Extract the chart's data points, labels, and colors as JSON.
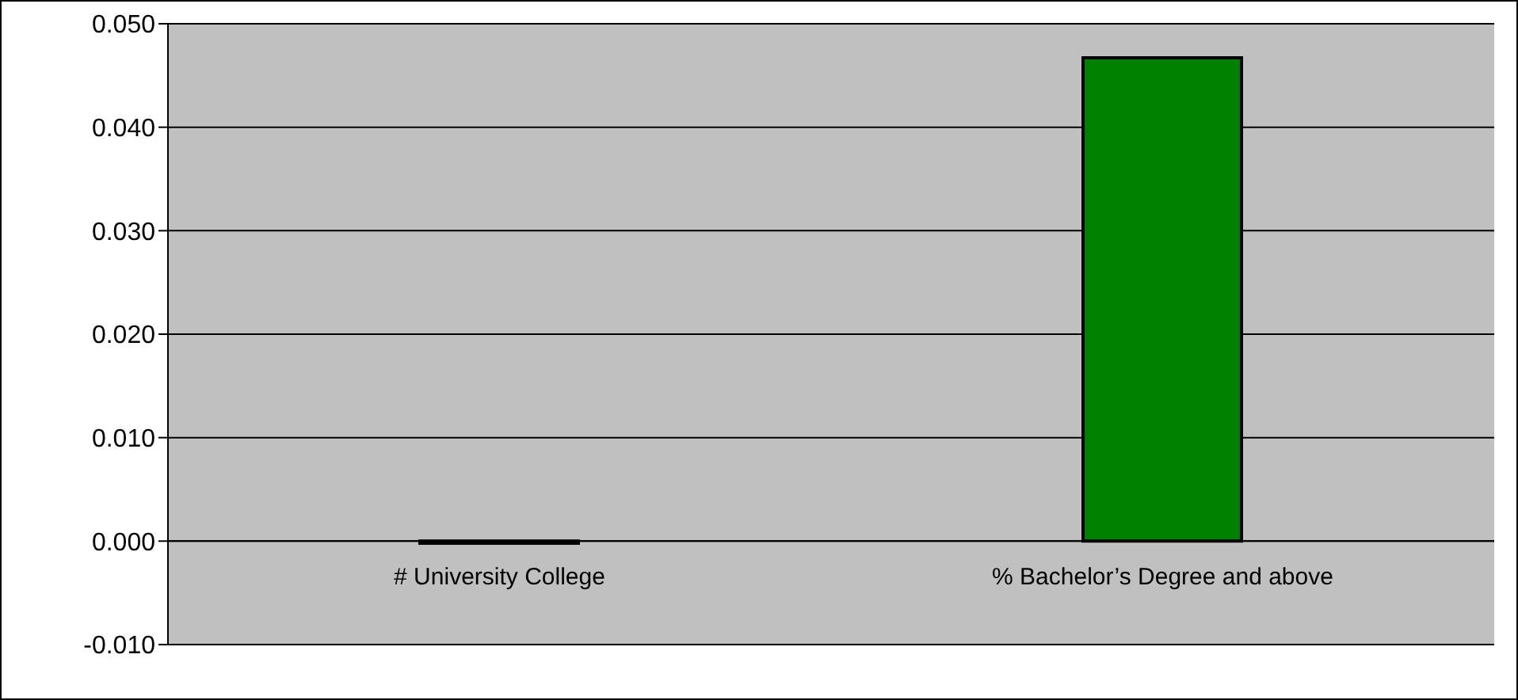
{
  "chart_data": {
    "type": "bar",
    "categories": [
      "# University College",
      "% Bachelor’s Degree and above"
    ],
    "values": [
      -0.0002,
      0.0467
    ],
    "colors": [
      "#000000",
      "#008000"
    ],
    "ylim": [
      -0.01,
      0.05
    ],
    "yticks": [
      {
        "value": -0.01,
        "label": "-0.010"
      },
      {
        "value": 0,
        "label": "0.000"
      },
      {
        "value": 0.01,
        "label": "0.010"
      },
      {
        "value": 0.02,
        "label": "0.020"
      },
      {
        "value": 0.03,
        "label": "0.030"
      },
      {
        "value": 0.04,
        "label": "0.040"
      },
      {
        "value": 0.05,
        "label": "0.050"
      }
    ],
    "grid": "y"
  }
}
